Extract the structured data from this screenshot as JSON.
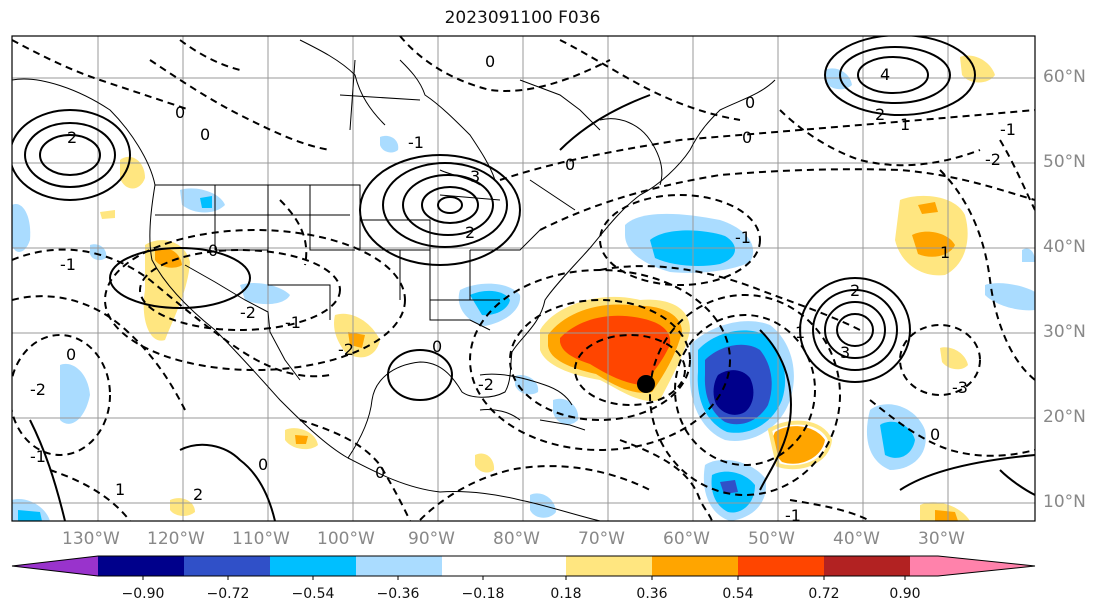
{
  "title": "2023091100 F036",
  "lon_labels": [
    "130°W",
    "120°W",
    "110°W",
    "100°W",
    "90°W",
    "80°W",
    "70°W",
    "60°W",
    "50°W",
    "40°W",
    "30°W"
  ],
  "lat_labels": [
    "60°N",
    "50°N",
    "40°N",
    "30°N",
    "20°N",
    "10°N"
  ],
  "colorbar": {
    "ticks": [
      "−0.90",
      "−0.72",
      "−0.54",
      "−0.36",
      "−0.18",
      "0.18",
      "0.36",
      "0.54",
      "0.72",
      "0.90"
    ],
    "colors": [
      "#9933cc",
      "#00008b",
      "#3050c8",
      "#00bfff",
      "#aadcff",
      "#ffffff",
      "#ffe680",
      "#ffa500",
      "#ff4500",
      "#b22222",
      "#ff82ab"
    ]
  },
  "contour_labels": [
    "0",
    "-1",
    "-2",
    "1",
    "2",
    "3",
    "4",
    "-3"
  ],
  "marker": "storm-center"
}
